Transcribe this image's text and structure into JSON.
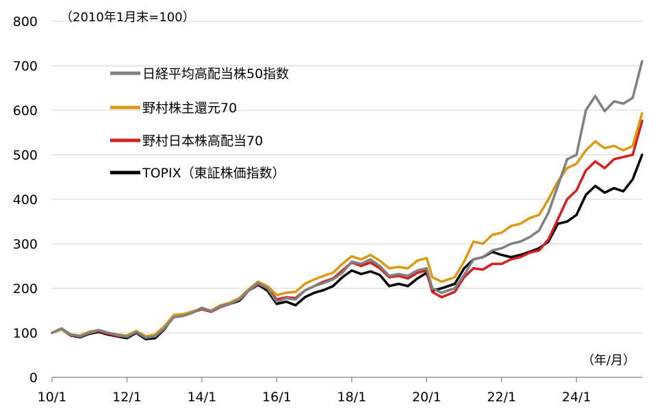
{
  "chart_data": {
    "type": "line",
    "unit_note": "（2010年1月末=100）",
    "x_unit_note": "（年/月）",
    "ylim": [
      0,
      800
    ],
    "yticks": [
      "0",
      "100",
      "200",
      "300",
      "400",
      "500",
      "600",
      "700",
      "800"
    ],
    "xticks": [
      "10/1",
      "12/1",
      "14/1",
      "16/1",
      "18/1",
      "20/1",
      "22/1",
      "24/1"
    ],
    "xrange": [
      2010.0,
      2025.75
    ],
    "grid": "horizontal",
    "legend_position": "upper-left",
    "series": [
      {
        "name": "日経平均高配当株50指数",
        "color": "#808080",
        "points": [
          [
            2010.0,
            100
          ],
          [
            2010.25,
            110
          ],
          [
            2010.5,
            96
          ],
          [
            2010.75,
            92
          ],
          [
            2011.0,
            100
          ],
          [
            2011.25,
            106
          ],
          [
            2011.5,
            100
          ],
          [
            2011.75,
            95
          ],
          [
            2012.0,
            91
          ],
          [
            2012.25,
            102
          ],
          [
            2012.5,
            89
          ],
          [
            2012.75,
            92
          ],
          [
            2013.0,
            110
          ],
          [
            2013.25,
            135
          ],
          [
            2013.5,
            138
          ],
          [
            2013.75,
            145
          ],
          [
            2014.0,
            156
          ],
          [
            2014.25,
            148
          ],
          [
            2014.5,
            160
          ],
          [
            2014.75,
            165
          ],
          [
            2015.0,
            175
          ],
          [
            2015.25,
            195
          ],
          [
            2015.5,
            212
          ],
          [
            2015.75,
            200
          ],
          [
            2016.0,
            170
          ],
          [
            2016.25,
            178
          ],
          [
            2016.5,
            175
          ],
          [
            2016.75,
            195
          ],
          [
            2017.0,
            205
          ],
          [
            2017.25,
            212
          ],
          [
            2017.5,
            220
          ],
          [
            2017.75,
            235
          ],
          [
            2018.0,
            260
          ],
          [
            2018.25,
            255
          ],
          [
            2018.5,
            265
          ],
          [
            2018.75,
            250
          ],
          [
            2019.0,
            228
          ],
          [
            2019.25,
            232
          ],
          [
            2019.5,
            228
          ],
          [
            2019.75,
            240
          ],
          [
            2020.0,
            245
          ],
          [
            2020.15,
            200
          ],
          [
            2020.4,
            190
          ],
          [
            2020.75,
            200
          ],
          [
            2021.0,
            230
          ],
          [
            2021.25,
            265
          ],
          [
            2021.5,
            270
          ],
          [
            2021.75,
            285
          ],
          [
            2022.0,
            290
          ],
          [
            2022.25,
            300
          ],
          [
            2022.5,
            305
          ],
          [
            2022.75,
            315
          ],
          [
            2023.0,
            330
          ],
          [
            2023.25,
            370
          ],
          [
            2023.5,
            430
          ],
          [
            2023.75,
            490
          ],
          [
            2024.0,
            500
          ],
          [
            2024.25,
            600
          ],
          [
            2024.5,
            632
          ],
          [
            2024.75,
            598
          ],
          [
            2025.0,
            620
          ],
          [
            2025.25,
            615
          ],
          [
            2025.5,
            628
          ],
          [
            2025.75,
            710
          ]
        ]
      },
      {
        "name": "野村株主還元70",
        "color": "#D89B17",
        "points": [
          [
            2010.0,
            100
          ],
          [
            2010.25,
            108
          ],
          [
            2010.5,
            96
          ],
          [
            2010.75,
            94
          ],
          [
            2011.0,
            103
          ],
          [
            2011.25,
            106
          ],
          [
            2011.5,
            100
          ],
          [
            2011.75,
            96
          ],
          [
            2012.0,
            94
          ],
          [
            2012.25,
            104
          ],
          [
            2012.5,
            92
          ],
          [
            2012.75,
            96
          ],
          [
            2013.0,
            115
          ],
          [
            2013.25,
            140
          ],
          [
            2013.5,
            142
          ],
          [
            2013.75,
            148
          ],
          [
            2014.0,
            155
          ],
          [
            2014.25,
            150
          ],
          [
            2014.5,
            162
          ],
          [
            2014.75,
            168
          ],
          [
            2015.0,
            178
          ],
          [
            2015.25,
            198
          ],
          [
            2015.5,
            215
          ],
          [
            2015.75,
            205
          ],
          [
            2016.0,
            185
          ],
          [
            2016.25,
            190
          ],
          [
            2016.5,
            192
          ],
          [
            2016.75,
            210
          ],
          [
            2017.0,
            220
          ],
          [
            2017.25,
            228
          ],
          [
            2017.5,
            235
          ],
          [
            2017.75,
            255
          ],
          [
            2018.0,
            272
          ],
          [
            2018.25,
            265
          ],
          [
            2018.5,
            275
          ],
          [
            2018.75,
            262
          ],
          [
            2019.0,
            245
          ],
          [
            2019.25,
            248
          ],
          [
            2019.5,
            245
          ],
          [
            2019.75,
            262
          ],
          [
            2020.0,
            268
          ],
          [
            2020.15,
            225
          ],
          [
            2020.4,
            215
          ],
          [
            2020.75,
            225
          ],
          [
            2021.0,
            260
          ],
          [
            2021.25,
            305
          ],
          [
            2021.5,
            300
          ],
          [
            2021.75,
            320
          ],
          [
            2022.0,
            325
          ],
          [
            2022.25,
            340
          ],
          [
            2022.5,
            345
          ],
          [
            2022.75,
            358
          ],
          [
            2023.0,
            365
          ],
          [
            2023.25,
            400
          ],
          [
            2023.5,
            440
          ],
          [
            2023.75,
            470
          ],
          [
            2024.0,
            480
          ],
          [
            2024.25,
            510
          ],
          [
            2024.5,
            530
          ],
          [
            2024.75,
            515
          ],
          [
            2025.0,
            520
          ],
          [
            2025.25,
            510
          ],
          [
            2025.5,
            520
          ],
          [
            2025.75,
            593
          ]
        ]
      },
      {
        "name": "野村日本株高配当70",
        "color": "#D42020",
        "points": [
          [
            2010.0,
            100
          ],
          [
            2010.25,
            108
          ],
          [
            2010.5,
            95
          ],
          [
            2010.75,
            92
          ],
          [
            2011.0,
            100
          ],
          [
            2011.25,
            104
          ],
          [
            2011.5,
            98
          ],
          [
            2011.75,
            93
          ],
          [
            2012.0,
            92
          ],
          [
            2012.25,
            103
          ],
          [
            2012.5,
            92
          ],
          [
            2012.75,
            94
          ],
          [
            2013.0,
            112
          ],
          [
            2013.25,
            138
          ],
          [
            2013.5,
            140
          ],
          [
            2013.75,
            146
          ],
          [
            2014.0,
            153
          ],
          [
            2014.25,
            147
          ],
          [
            2014.5,
            158
          ],
          [
            2014.75,
            165
          ],
          [
            2015.0,
            175
          ],
          [
            2015.25,
            195
          ],
          [
            2015.5,
            210
          ],
          [
            2015.75,
            200
          ],
          [
            2016.0,
            175
          ],
          [
            2016.25,
            180
          ],
          [
            2016.5,
            178
          ],
          [
            2016.75,
            195
          ],
          [
            2017.0,
            205
          ],
          [
            2017.25,
            215
          ],
          [
            2017.5,
            222
          ],
          [
            2017.75,
            240
          ],
          [
            2018.0,
            258
          ],
          [
            2018.25,
            250
          ],
          [
            2018.5,
            258
          ],
          [
            2018.75,
            245
          ],
          [
            2019.0,
            225
          ],
          [
            2019.25,
            228
          ],
          [
            2019.5,
            222
          ],
          [
            2019.75,
            235
          ],
          [
            2020.0,
            240
          ],
          [
            2020.15,
            192
          ],
          [
            2020.4,
            180
          ],
          [
            2020.75,
            192
          ],
          [
            2021.0,
            225
          ],
          [
            2021.25,
            245
          ],
          [
            2021.5,
            242
          ],
          [
            2021.75,
            255
          ],
          [
            2022.0,
            255
          ],
          [
            2022.25,
            265
          ],
          [
            2022.5,
            270
          ],
          [
            2022.75,
            280
          ],
          [
            2023.0,
            285
          ],
          [
            2023.25,
            310
          ],
          [
            2023.5,
            355
          ],
          [
            2023.75,
            400
          ],
          [
            2024.0,
            420
          ],
          [
            2024.25,
            465
          ],
          [
            2024.5,
            485
          ],
          [
            2024.75,
            470
          ],
          [
            2025.0,
            490
          ],
          [
            2025.25,
            495
          ],
          [
            2025.5,
            500
          ],
          [
            2025.75,
            576
          ]
        ]
      },
      {
        "name": "TOPIX（東証株価指数）",
        "color": "#000000",
        "points": [
          [
            2010.0,
            100
          ],
          [
            2010.25,
            108
          ],
          [
            2010.5,
            94
          ],
          [
            2010.75,
            90
          ],
          [
            2011.0,
            98
          ],
          [
            2011.25,
            102
          ],
          [
            2011.5,
            96
          ],
          [
            2011.75,
            92
          ],
          [
            2012.0,
            88
          ],
          [
            2012.25,
            100
          ],
          [
            2012.5,
            86
          ],
          [
            2012.75,
            88
          ],
          [
            2013.0,
            108
          ],
          [
            2013.25,
            138
          ],
          [
            2013.5,
            140
          ],
          [
            2013.75,
            146
          ],
          [
            2014.0,
            156
          ],
          [
            2014.25,
            148
          ],
          [
            2014.5,
            160
          ],
          [
            2014.75,
            165
          ],
          [
            2015.0,
            172
          ],
          [
            2015.25,
            195
          ],
          [
            2015.5,
            208
          ],
          [
            2015.75,
            195
          ],
          [
            2016.0,
            165
          ],
          [
            2016.25,
            170
          ],
          [
            2016.5,
            162
          ],
          [
            2016.75,
            180
          ],
          [
            2017.0,
            190
          ],
          [
            2017.25,
            196
          ],
          [
            2017.5,
            205
          ],
          [
            2017.75,
            225
          ],
          [
            2018.0,
            240
          ],
          [
            2018.25,
            232
          ],
          [
            2018.5,
            238
          ],
          [
            2018.75,
            230
          ],
          [
            2019.0,
            205
          ],
          [
            2019.25,
            210
          ],
          [
            2019.5,
            205
          ],
          [
            2019.75,
            222
          ],
          [
            2020.0,
            235
          ],
          [
            2020.15,
            195
          ],
          [
            2020.4,
            200
          ],
          [
            2020.75,
            210
          ],
          [
            2021.0,
            245
          ],
          [
            2021.25,
            265
          ],
          [
            2021.5,
            270
          ],
          [
            2021.75,
            282
          ],
          [
            2022.0,
            275
          ],
          [
            2022.25,
            270
          ],
          [
            2022.5,
            275
          ],
          [
            2022.75,
            282
          ],
          [
            2023.0,
            290
          ],
          [
            2023.25,
            305
          ],
          [
            2023.5,
            345
          ],
          [
            2023.75,
            350
          ],
          [
            2024.0,
            365
          ],
          [
            2024.25,
            410
          ],
          [
            2024.5,
            430
          ],
          [
            2024.75,
            415
          ],
          [
            2025.0,
            425
          ],
          [
            2025.25,
            418
          ],
          [
            2025.5,
            445
          ],
          [
            2025.75,
            500
          ]
        ]
      }
    ]
  }
}
